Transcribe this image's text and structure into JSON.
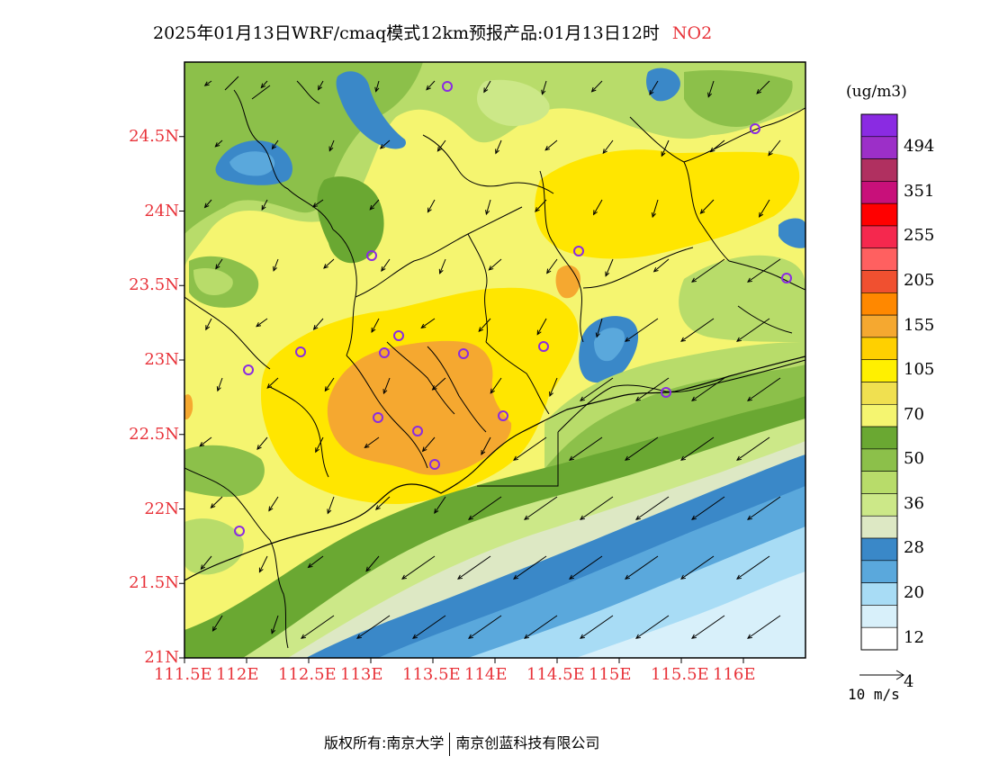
{
  "title": {
    "main": "2025年01月13日WRF/cmaq模式12km预报产品:01月13日12时",
    "species": "NO2"
  },
  "latitude_labels": [
    "24.5N",
    "24N",
    "23.5N",
    "23N",
    "22.5N",
    "22N",
    "21.5N",
    "21N"
  ],
  "longitude_labels": [
    "111.5E",
    "112E",
    "112.5E",
    "113E",
    "113.5E",
    "114E",
    "114.5E",
    "115E",
    "115.5E",
    "116E"
  ],
  "colorbar": {
    "unit": "(ug/m3)",
    "labels": [
      "494",
      "351",
      "255",
      "205",
      "155",
      "105",
      "70",
      "50",
      "36",
      "28",
      "20",
      "12",
      "4"
    ],
    "colors": [
      "#8a2be2",
      "#9c2fc8",
      "#b03060",
      "#c8107a",
      "#ff0000",
      "#f5284e",
      "#ff6060",
      "#f05030",
      "#ff8800",
      "#f5a830",
      "#ffd000",
      "#fff000",
      "#f0e050",
      "#f5f570",
      "#6aa832",
      "#8cc04a",
      "#b8dc6a",
      "#cce888",
      "#dde8c4",
      "#3a88c8",
      "#5aa8dc",
      "#a8dcf5",
      "#d8f0fa",
      "#ffffff"
    ]
  },
  "wind_reference": {
    "label": "10 m/s"
  },
  "footer": {
    "left": "版权所有:南京大学",
    "right": "南京创蓝科技有限公司"
  },
  "colors": {
    "axis_label": "#e8333a",
    "station_marker": "#8a2be2"
  },
  "map": {
    "lon_range": [
      111.5,
      116.5
    ],
    "lat_range": [
      21.0,
      25.0
    ],
    "station_marker_count": 17,
    "wind_field": "northeasterly, stronger offshore to the southeast"
  }
}
